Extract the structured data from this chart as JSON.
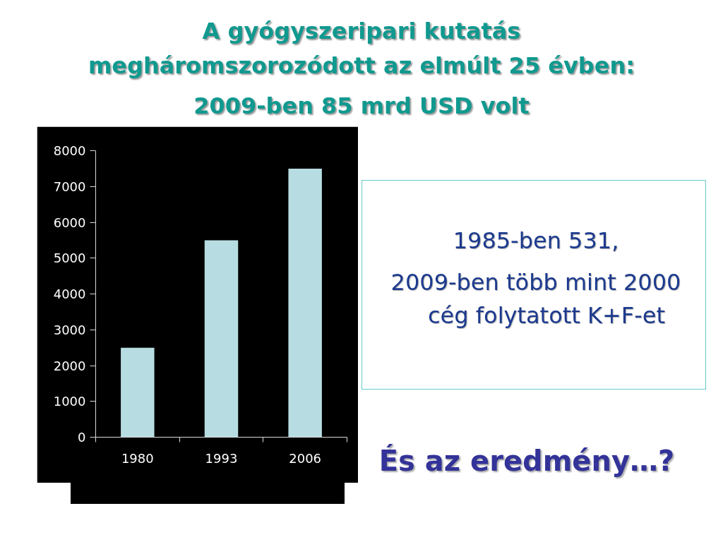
{
  "chart_data": {
    "type": "bar",
    "title": "A gyógyszeripari kutatás megháromszorozódott az elmúlt 25 évben:",
    "subtitle": "2009-ben 85 mrd USD volt",
    "categories": [
      "1980",
      "1993",
      "2006"
    ],
    "values": [
      2500,
      5500,
      7500
    ],
    "color": "#b7dde2",
    "ylim": [
      0,
      8000
    ],
    "yticks": [
      0,
      1000,
      2000,
      3000,
      4000,
      5000,
      6000,
      7000,
      8000
    ],
    "grid": false,
    "annotations": [
      "1985-ben 531,",
      "2009-ben több mint 2000 cég folytatott K+F-et",
      "És az eredmény…?"
    ]
  }
}
